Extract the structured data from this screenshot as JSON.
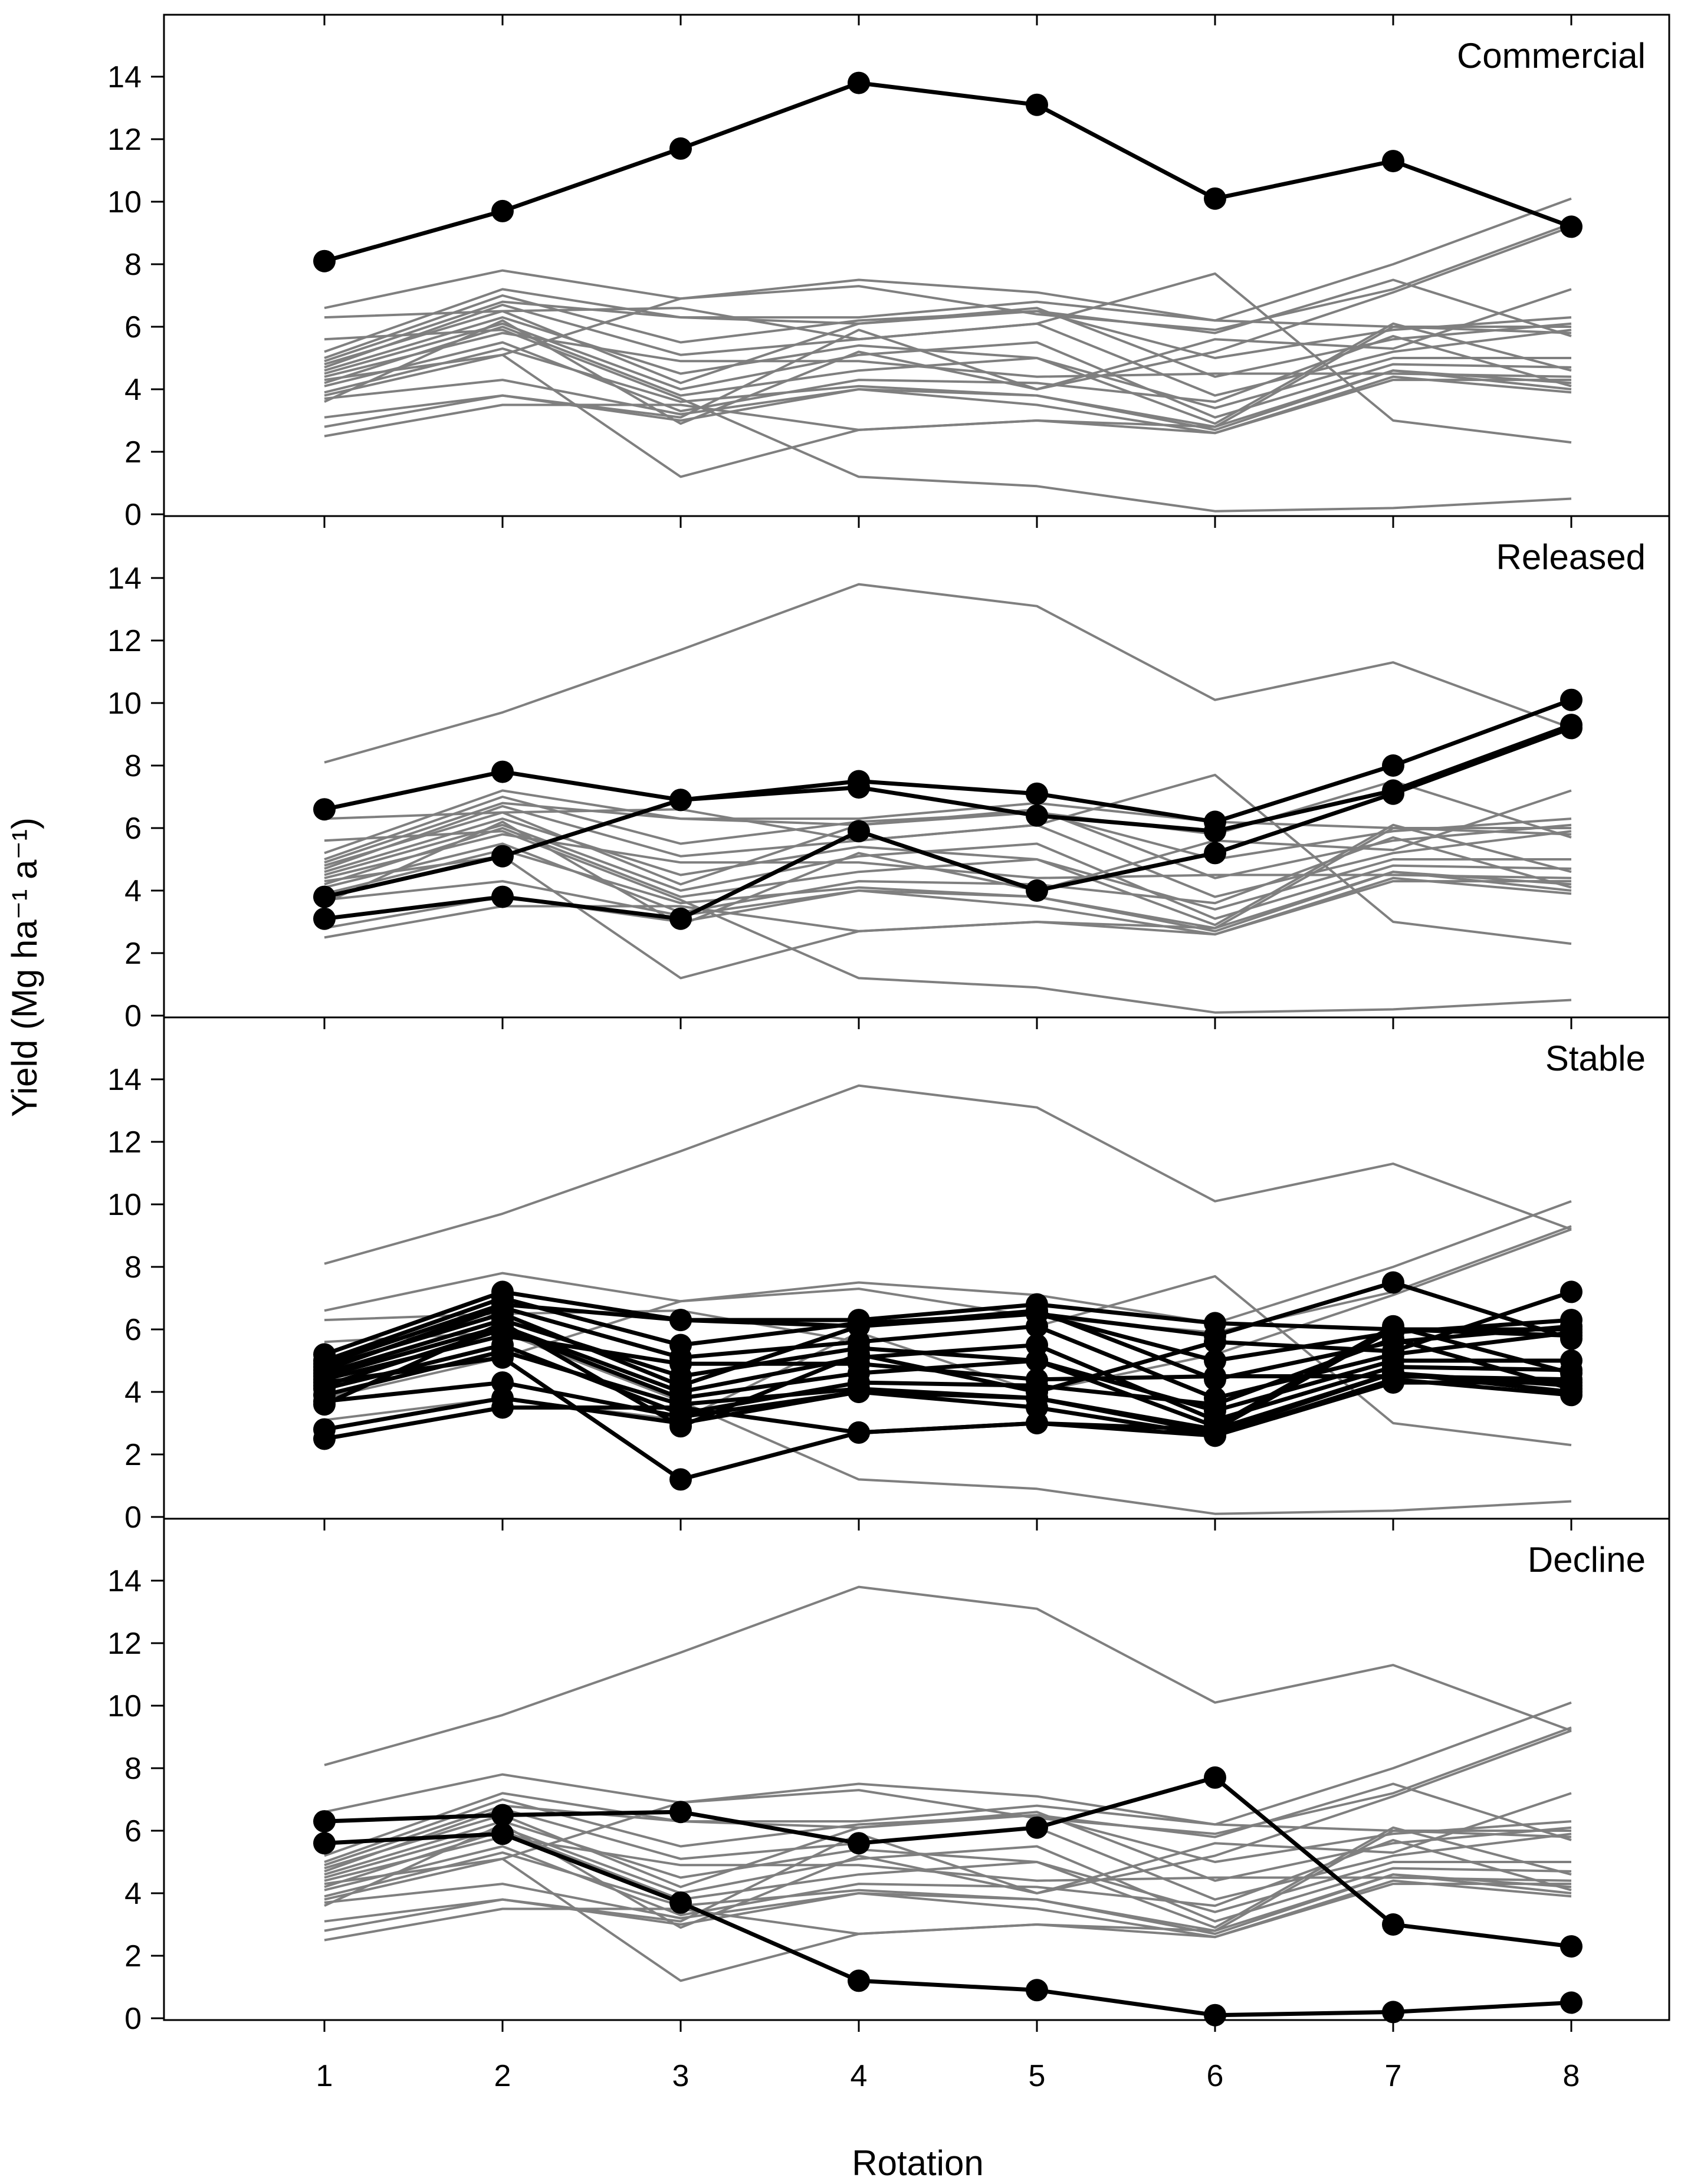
{
  "chart_data": {
    "type": "line",
    "ylabel": "Yield (Mg ha⁻¹ a⁻¹)",
    "xlabel": "Rotation",
    "x": [
      1,
      2,
      3,
      4,
      5,
      6,
      7,
      8
    ],
    "x_tick_labels": [
      "1",
      "2",
      "3",
      "4",
      "5",
      "6",
      "7",
      "8"
    ],
    "ylim": [
      -0.5,
      15.2
    ],
    "y_ticks": [
      0,
      2,
      4,
      6,
      8,
      10,
      12,
      14
    ],
    "y_tick_labels": [
      "0",
      "2",
      "4",
      "6",
      "8",
      "10",
      "12",
      "14"
    ],
    "highlight_color": "#000000",
    "background_color": "#7f7f7f",
    "grid": false,
    "panels": [
      {
        "title": "Commercial",
        "groups": [
          "Commercial"
        ]
      },
      {
        "title": "Released",
        "groups": [
          "Released"
        ]
      },
      {
        "title": "Stable",
        "groups": [
          "Stable"
        ]
      },
      {
        "title": "Decline",
        "groups": [
          "Decline"
        ]
      }
    ],
    "series": [
      {
        "group": "Commercial",
        "values": [
          8.1,
          9.7,
          11.7,
          13.8,
          13.1,
          10.1,
          11.3,
          9.2
        ]
      },
      {
        "group": "Released",
        "values": [
          6.6,
          7.8,
          6.9,
          7.5,
          7.1,
          6.2,
          8.0,
          10.1
        ]
      },
      {
        "group": "Released",
        "values": [
          3.8,
          5.1,
          6.9,
          7.3,
          6.4,
          5.9,
          7.2,
          9.3
        ]
      },
      {
        "group": "Released",
        "values": [
          3.1,
          3.8,
          3.1,
          5.9,
          4.0,
          5.2,
          7.1,
          9.2
        ]
      },
      {
        "group": "Stable",
        "values": [
          5.2,
          7.2,
          6.3,
          6.3,
          6.8,
          6.2,
          6.0,
          6.0
        ]
      },
      {
        "group": "Stable",
        "values": [
          5.0,
          7.0,
          5.5,
          6.2,
          6.5,
          5.8,
          7.5,
          5.7
        ]
      },
      {
        "group": "Stable",
        "values": [
          4.9,
          6.8,
          6.3,
          6.1,
          6.5,
          5.0,
          5.9,
          6.3
        ]
      },
      {
        "group": "Stable",
        "values": [
          4.8,
          6.5,
          4.2,
          6.1,
          6.6,
          4.4,
          5.6,
          6.1
        ]
      },
      {
        "group": "Stable",
        "values": [
          4.7,
          6.7,
          5.1,
          5.6,
          6.1,
          3.8,
          5.2,
          5.9
        ]
      },
      {
        "group": "Stable",
        "values": [
          4.6,
          6.3,
          4.5,
          5.4,
          5.0,
          3.4,
          5.0,
          5.0
        ]
      },
      {
        "group": "Stable",
        "values": [
          4.5,
          6.1,
          4.0,
          5.1,
          5.5,
          3.1,
          4.8,
          4.7
        ]
      },
      {
        "group": "Stable",
        "values": [
          4.4,
          5.8,
          4.9,
          4.9,
          4.4,
          4.5,
          4.5,
          4.4
        ]
      },
      {
        "group": "Stable",
        "values": [
          4.2,
          6.0,
          3.8,
          4.6,
          5.0,
          2.9,
          6.1,
          4.6
        ]
      },
      {
        "group": "Stable",
        "values": [
          4.1,
          5.5,
          3.3,
          4.3,
          4.2,
          3.6,
          5.7,
          4.1
        ]
      },
      {
        "group": "Stable",
        "values": [
          3.9,
          5.3,
          3.6,
          4.1,
          3.8,
          2.8,
          4.6,
          4.2
        ]
      },
      {
        "group": "Stable",
        "values": [
          3.7,
          4.3,
          3.2,
          4.0,
          3.5,
          2.6,
          4.4,
          3.9
        ]
      },
      {
        "group": "Stable",
        "values": [
          3.6,
          6.2,
          2.9,
          5.2,
          4.0,
          5.6,
          5.3,
          7.2
        ]
      },
      {
        "group": "Stable",
        "values": [
          2.8,
          3.8,
          3.0,
          4.0,
          3.8,
          2.7,
          4.6,
          4.0
        ]
      },
      {
        "group": "Stable",
        "values": [
          2.5,
          3.5,
          3.5,
          2.7,
          3.0,
          2.8,
          6.0,
          5.8
        ]
      },
      {
        "group": "Stable",
        "values": [
          4.3,
          5.1,
          1.2,
          2.7,
          3.0,
          2.6,
          4.3,
          4.3
        ]
      },
      {
        "group": "Decline",
        "values": [
          6.3,
          6.5,
          6.6,
          5.6,
          6.1,
          7.7,
          3.0,
          2.3
        ]
      },
      {
        "group": "Decline",
        "values": [
          5.6,
          5.9,
          3.7,
          1.2,
          0.9,
          0.1,
          0.2,
          0.5
        ]
      }
    ]
  }
}
